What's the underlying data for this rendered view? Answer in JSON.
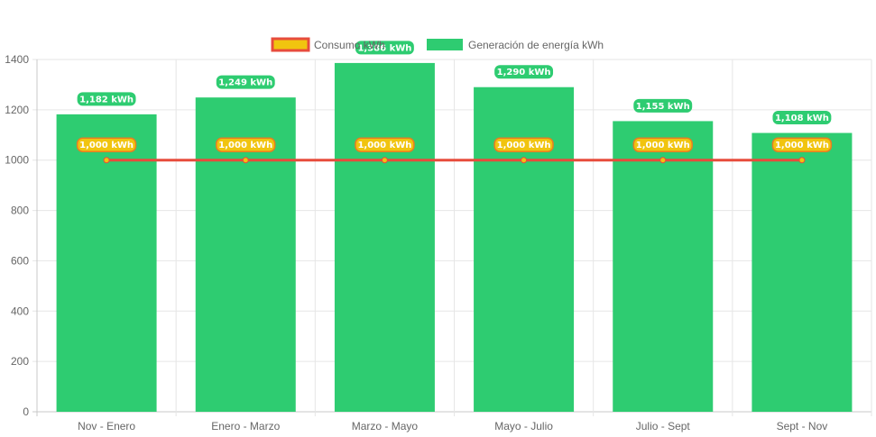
{
  "chart_data": {
    "type": "bar",
    "categories": [
      "Nov - Enero",
      "Enero - Marzo",
      "Marzo - Mayo",
      "Mayo - Julio",
      "Julio - Sept",
      "Sept - Nov"
    ],
    "series": [
      {
        "name": "Consumo kWh",
        "type": "line",
        "values": [
          1000,
          1000,
          1000,
          1000,
          1000,
          1000
        ],
        "labels": [
          "1,000 kWh",
          "1,000 kWh",
          "1,000 kWh",
          "1,000 kWh",
          "1,000 kWh",
          "1,000 kWh"
        ],
        "color": "#e74c3c",
        "fill": "#f1c40f"
      },
      {
        "name": "Generación de energía kWh",
        "type": "bar",
        "values": [
          1182,
          1249,
          1386,
          1290,
          1155,
          1108
        ],
        "labels": [
          "1,182 kWh",
          "1,249 kWh",
          "1,386 kWh",
          "1,290 kWh",
          "1,155 kWh",
          "1,108 kWh"
        ],
        "color": "#2ecc71"
      }
    ],
    "yticks": [
      "0",
      "200",
      "400",
      "600",
      "800",
      "1000",
      "1200",
      "1400"
    ],
    "ylim": [
      0,
      1400
    ],
    "grid": true,
    "legend_position": "top-center",
    "title": "",
    "xlabel": "",
    "ylabel": ""
  }
}
